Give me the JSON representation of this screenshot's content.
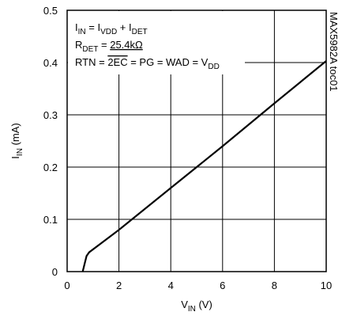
{
  "chart_data": {
    "type": "line",
    "x_label": [
      {
        "text": "V"
      },
      {
        "text": "IN",
        "sub": true
      },
      {
        "text": " (V)"
      }
    ],
    "y_label": [
      {
        "text": "I"
      },
      {
        "text": "IN",
        "sub": true
      },
      {
        "text": " (mA)"
      }
    ],
    "annotations": [
      [
        {
          "text": "I"
        },
        {
          "text": "IN",
          "sub": true
        },
        {
          "text": " = I"
        },
        {
          "text": "VDD",
          "sub": true
        },
        {
          "text": " + I"
        },
        {
          "text": "DET",
          "sub": true
        }
      ],
      [
        {
          "text": "R"
        },
        {
          "text": "DET",
          "sub": true
        },
        {
          "text": " = "
        },
        {
          "text": "25.4kΩ",
          "under": true
        }
      ],
      [
        {
          "text": "RTN = "
        },
        {
          "text": "2EC",
          "over": true
        },
        {
          "text": " = PG = WAD = V"
        },
        {
          "text": "DD",
          "sub": true
        }
      ]
    ],
    "side_note": "MAX5982A toc01",
    "x": [
      0.6,
      0.65,
      0.75,
      0.85,
      2,
      4,
      6,
      8,
      10
    ],
    "series": [
      {
        "color": "#000000",
        "values": [
          0,
          0.01,
          0.03,
          0.037,
          0.08,
          0.16,
          0.24,
          0.322,
          0.403
        ]
      }
    ],
    "xlim": [
      0,
      10
    ],
    "xticks": [
      0,
      2,
      4,
      6,
      8,
      10
    ],
    "ylim": [
      0,
      0.5
    ],
    "yticks": [
      0,
      0.1,
      0.2,
      0.3,
      0.4,
      0.5
    ],
    "grid": true
  }
}
